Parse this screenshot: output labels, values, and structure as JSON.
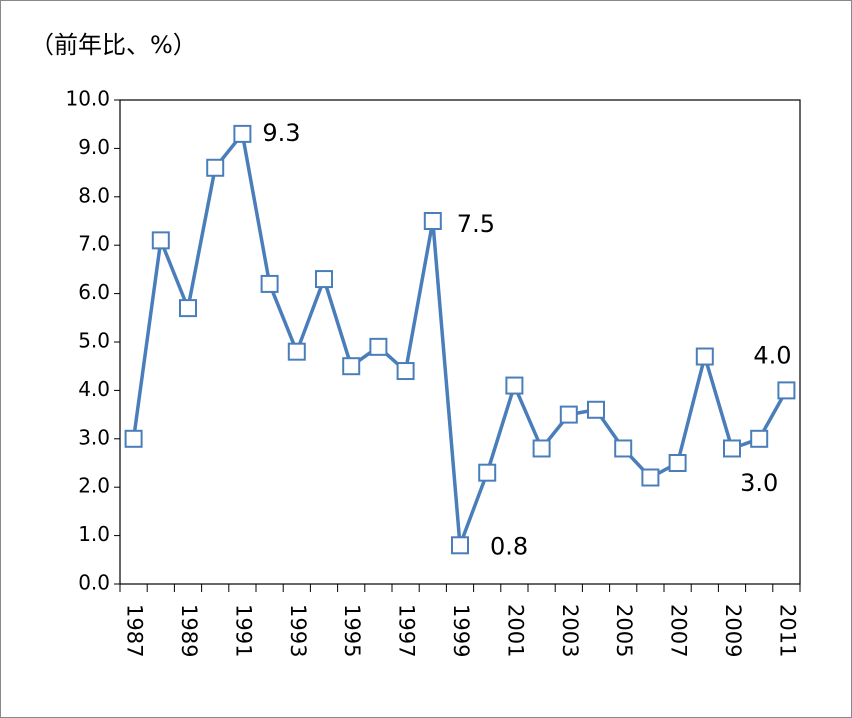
{
  "chart_data": {
    "type": "line",
    "title": "（前年比、%）",
    "categories": [
      "1987",
      null,
      "1989",
      null,
      "1991",
      null,
      "1993",
      null,
      "1995",
      null,
      "1997",
      null,
      "1999",
      null,
      "2001",
      null,
      "2003",
      null,
      "2005",
      null,
      "2007",
      null,
      "2009",
      null,
      "2011"
    ],
    "values": [
      3.0,
      7.1,
      5.7,
      8.6,
      9.3,
      6.2,
      4.8,
      6.3,
      4.5,
      4.9,
      4.4,
      7.5,
      0.8,
      2.3,
      4.1,
      2.8,
      3.5,
      3.6,
      2.8,
      2.2,
      2.5,
      4.7,
      2.8,
      3.0,
      4.0
    ],
    "value_labels": [
      null,
      null,
      null,
      null,
      "9.3",
      null,
      null,
      null,
      null,
      null,
      null,
      "7.5",
      "0.8",
      null,
      null,
      null,
      null,
      null,
      null,
      null,
      null,
      null,
      null,
      "3.0",
      "4.0"
    ],
    "color": "#4a7ebb",
    "ylim": [
      0,
      10
    ],
    "yticks": [
      {
        "value": 0,
        "label": "0.0"
      },
      {
        "value": 1,
        "label": "1.0"
      },
      {
        "value": 2,
        "label": "2.0"
      },
      {
        "value": 3,
        "label": "3.0"
      },
      {
        "value": 4,
        "label": "4.0"
      },
      {
        "value": 5,
        "label": "5.0"
      },
      {
        "value": 6,
        "label": "6.0"
      },
      {
        "value": 7,
        "label": "7.0"
      },
      {
        "value": 8,
        "label": "8.0"
      },
      {
        "value": 9,
        "label": "9.0"
      },
      {
        "value": 10,
        "label": "10.0"
      }
    ]
  }
}
